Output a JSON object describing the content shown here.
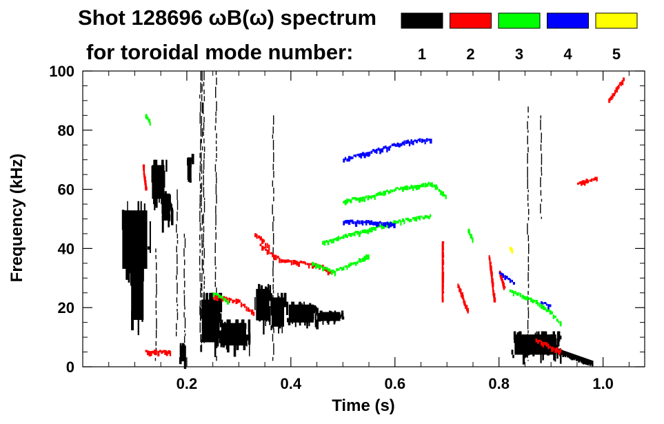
{
  "chart_data": {
    "type": "scatter",
    "title_line1": "Shot 128696 ωB(ω) spectrum",
    "title_line2": "for toroidal mode number:",
    "xlabel": "Time (s)",
    "ylabel": "Frequency (kHz)",
    "xlim": [
      0.0,
      1.08
    ],
    "ylim": [
      0,
      100
    ],
    "xticks": [
      0.2,
      0.4,
      0.6,
      0.8,
      1.0
    ],
    "xtick_labels": [
      "0.2",
      "0.4",
      "0.6",
      "0.8",
      "1.0"
    ],
    "yticks": [
      0,
      20,
      40,
      60,
      80,
      100
    ],
    "ytick_labels": [
      "0",
      "20",
      "40",
      "60",
      "80",
      "100"
    ],
    "legend": [
      {
        "label": "1",
        "color": "#000000"
      },
      {
        "label": "2",
        "color": "#ff0000"
      },
      {
        "label": "3",
        "color": "#00ff00"
      },
      {
        "label": "4",
        "color": "#0000ff"
      },
      {
        "label": "5",
        "color": "#ffff00"
      }
    ],
    "series": [
      {
        "name": "n=1",
        "color": "#000000",
        "features": [
          {
            "kind": "blob",
            "t": [
              0.07,
              0.13
            ],
            "f": [
              30,
              56
            ]
          },
          {
            "kind": "blob",
            "t": [
              0.09,
              0.12
            ],
            "f": [
              12,
              44
            ]
          },
          {
            "kind": "blob",
            "t": [
              0.13,
              0.16
            ],
            "f": [
              55,
              70
            ]
          },
          {
            "kind": "blob",
            "t": [
              0.15,
              0.17
            ],
            "f": [
              48,
              60
            ]
          },
          {
            "kind": "blob",
            "t": [
              0.185,
              0.2
            ],
            "f": [
              1,
              8
            ]
          },
          {
            "kind": "blob",
            "t": [
              0.2,
              0.21
            ],
            "f": [
              62,
              72
            ]
          },
          {
            "kind": "blob",
            "t": [
              0.225,
              0.265
            ],
            "f": [
              6,
              25
            ]
          },
          {
            "kind": "blob",
            "t": [
              0.26,
              0.32
            ],
            "f": [
              6,
              16
            ]
          },
          {
            "kind": "blob",
            "t": [
              0.33,
              0.36
            ],
            "f": [
              14,
              28
            ]
          },
          {
            "kind": "blob",
            "t": [
              0.36,
              0.39
            ],
            "f": [
              12,
              25
            ]
          },
          {
            "kind": "blob",
            "t": [
              0.39,
              0.45
            ],
            "f": [
              14,
              22
            ]
          },
          {
            "kind": "blob",
            "t": [
              0.45,
              0.5
            ],
            "f": [
              15,
              19
            ]
          },
          {
            "kind": "blob",
            "t": [
              0.82,
              0.92
            ],
            "f": [
              3,
              12
            ]
          },
          {
            "kind": "vline",
            "t": 0.225,
            "f": [
              5,
              100
            ]
          },
          {
            "kind": "vline",
            "t": 0.228,
            "f": [
              5,
              100
            ]
          },
          {
            "kind": "vline",
            "t": 0.232,
            "f": [
              8,
              100
            ]
          },
          {
            "kind": "vline",
            "t": 0.18,
            "f": [
              10,
              60
            ]
          },
          {
            "kind": "vline",
            "t": 0.195,
            "f": [
              2,
              45
            ]
          },
          {
            "kind": "vline",
            "t": 0.255,
            "f": [
              2,
              100
            ]
          },
          {
            "kind": "vline",
            "t": 0.14,
            "f": [
              2,
              40
            ]
          },
          {
            "kind": "vline",
            "t": 0.365,
            "f": [
              2,
              85
            ]
          },
          {
            "kind": "vline",
            "t": 0.855,
            "f": [
              2,
              88
            ]
          },
          {
            "kind": "vline",
            "t": 0.88,
            "f": [
              50,
              85
            ]
          },
          {
            "kind": "band",
            "t": [
              0.85,
              0.98
            ],
            "f0": 9,
            "f1": 1
          }
        ]
      },
      {
        "name": "n=2",
        "color": "#ff0000",
        "features": [
          {
            "kind": "line",
            "pts": [
              [
                0.25,
                24
              ],
              [
                0.3,
                22
              ],
              [
                0.33,
                18
              ]
            ]
          },
          {
            "kind": "line",
            "pts": [
              [
                0.34,
                41
              ],
              [
                0.38,
                36
              ],
              [
                0.42,
                35
              ],
              [
                0.46,
                34
              ],
              [
                0.48,
                31
              ]
            ]
          },
          {
            "kind": "line",
            "pts": [
              [
                0.33,
                45
              ],
              [
                0.36,
                40
              ]
            ]
          },
          {
            "kind": "line",
            "pts": [
              [
                0.72,
                28
              ],
              [
                0.74,
                18
              ]
            ]
          },
          {
            "kind": "line",
            "pts": [
              [
                0.69,
                42
              ],
              [
                0.69,
                22
              ]
            ]
          },
          {
            "kind": "line",
            "pts": [
              [
                0.78,
                37
              ],
              [
                0.79,
                22
              ]
            ]
          },
          {
            "kind": "line",
            "pts": [
              [
                0.8,
                32
              ],
              [
                0.81,
                26
              ]
            ]
          },
          {
            "kind": "line",
            "pts": [
              [
                1.01,
                90
              ],
              [
                1.04,
                98
              ]
            ]
          },
          {
            "kind": "line",
            "pts": [
              [
                0.95,
                62
              ],
              [
                0.99,
                64
              ]
            ]
          },
          {
            "kind": "line",
            "pts": [
              [
                0.87,
                9
              ],
              [
                0.92,
                5
              ]
            ]
          },
          {
            "kind": "line",
            "pts": [
              [
                0.12,
                5
              ],
              [
                0.17,
                5
              ]
            ]
          },
          {
            "kind": "line",
            "pts": [
              [
                0.115,
                68
              ],
              [
                0.12,
                60
              ]
            ]
          }
        ]
      },
      {
        "name": "n=3",
        "color": "#00ff00",
        "features": [
          {
            "kind": "line",
            "pts": [
              [
                0.44,
                35
              ],
              [
                0.48,
                32
              ],
              [
                0.52,
                35
              ],
              [
                0.55,
                38
              ]
            ]
          },
          {
            "kind": "line",
            "pts": [
              [
                0.46,
                42
              ],
              [
                0.52,
                45
              ],
              [
                0.6,
                49
              ],
              [
                0.67,
                51
              ]
            ]
          },
          {
            "kind": "line",
            "pts": [
              [
                0.5,
                56
              ],
              [
                0.56,
                58
              ],
              [
                0.6,
                60
              ],
              [
                0.67,
                62
              ],
              [
                0.7,
                57
              ]
            ]
          },
          {
            "kind": "line",
            "pts": [
              [
                0.82,
                26
              ],
              [
                0.87,
                22
              ],
              [
                0.9,
                18
              ],
              [
                0.92,
                14
              ]
            ]
          },
          {
            "kind": "line",
            "pts": [
              [
                0.25,
                25
              ],
              [
                0.28,
                22
              ]
            ]
          },
          {
            "kind": "line",
            "pts": [
              [
                0.12,
                85
              ],
              [
                0.13,
                82
              ]
            ]
          },
          {
            "kind": "line",
            "pts": [
              [
                0.74,
                46
              ],
              [
                0.75,
                43
              ]
            ]
          }
        ]
      },
      {
        "name": "n=4",
        "color": "#0000ff",
        "features": [
          {
            "kind": "line",
            "pts": [
              [
                0.5,
                70
              ],
              [
                0.56,
                73
              ],
              [
                0.62,
                76
              ],
              [
                0.67,
                77
              ]
            ]
          },
          {
            "kind": "line",
            "pts": [
              [
                0.5,
                49
              ],
              [
                0.55,
                49
              ],
              [
                0.6,
                48
              ]
            ]
          },
          {
            "kind": "line",
            "pts": [
              [
                0.8,
                32
              ],
              [
                0.83,
                28
              ]
            ]
          },
          {
            "kind": "line",
            "pts": [
              [
                0.88,
                22
              ],
              [
                0.9,
                20
              ]
            ]
          }
        ]
      },
      {
        "name": "n=5",
        "color": "#ffff00",
        "features": [
          {
            "kind": "line",
            "pts": [
              [
                0.82,
                40
              ],
              [
                0.825,
                39
              ]
            ]
          }
        ]
      }
    ]
  }
}
